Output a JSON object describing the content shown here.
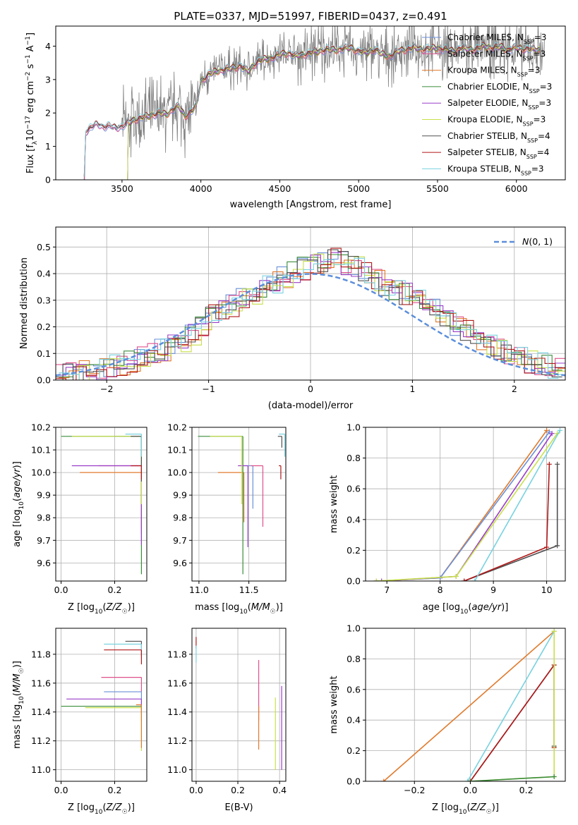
{
  "title": "PLATE=0337, MJD=51997, FIBERID=0437, z=0.491",
  "colors": {
    "Chabrier MILES": "#6a8fd8",
    "Salpeter MILES": "#e0508c",
    "Kroupa MILES": "#e07a2c",
    "Chabrier ELODIE": "#3a8c3a",
    "Salpeter ELODIE": "#9a3ec8",
    "Kroupa ELODIE": "#c8e04a",
    "Chabrier STELIB": "#505050",
    "Salpeter STELIB": "#b01818",
    "Kroupa STELIB": "#78d2e0",
    "data": "#808080",
    "normal": "#5b8edb"
  },
  "legend_entries": [
    {
      "name": "Chabrier MILES",
      "label": "Chabrier MILES, N",
      "sub": "SSP",
      "n": "=3"
    },
    {
      "name": "Salpeter MILES",
      "label": "Salpeter MILES, N",
      "sub": "SSP",
      "n": "=3"
    },
    {
      "name": "Kroupa MILES",
      "label": "Kroupa MILES, N",
      "sub": "SSP",
      "n": "=3"
    },
    {
      "name": "Chabrier ELODIE",
      "label": "Chabrier ELODIE, N",
      "sub": "SSP",
      "n": "=3"
    },
    {
      "name": "Salpeter ELODIE",
      "label": "Salpeter ELODIE, N",
      "sub": "SSP",
      "n": "=3"
    },
    {
      "name": "Kroupa ELODIE",
      "label": "Kroupa ELODIE, N",
      "sub": "SSP",
      "n": "=3"
    },
    {
      "name": "Chabrier STELIB",
      "label": "Chabrier STELIB, N",
      "sub": "SSP",
      "n": "=4"
    },
    {
      "name": "Salpeter STELIB",
      "label": "Salpeter STELIB, N",
      "sub": "SSP",
      "n": "=4"
    },
    {
      "name": "Kroupa STELIB",
      "label": "Kroupa STELIB, N",
      "sub": "SSP",
      "n": "=3"
    }
  ],
  "chart_data": [
    {
      "id": "spectrum",
      "type": "line",
      "xlabel": "wavelength [Angstrom, rest frame]",
      "ylabel": "Flux [f_λ 10^-17 erg cm^-2 s^-1 A^-1]",
      "xlim": [
        3080,
        6310
      ],
      "ylim": [
        0,
        4.6
      ],
      "xticks": [
        3500,
        4000,
        4500,
        5000,
        5500,
        6000
      ],
      "yticks": [
        0,
        1,
        2,
        3,
        4
      ],
      "legend": "top-right",
      "grid": false,
      "model_x": [
        3260,
        3270,
        3300,
        3340,
        3380,
        3420,
        3460,
        3500,
        3540,
        3580,
        3620,
        3660,
        3700,
        3740,
        3780,
        3820,
        3860,
        3900,
        3940,
        3970,
        4000,
        4050,
        4100,
        4150,
        4200,
        4250,
        4300,
        4350,
        4400,
        4450,
        4500,
        4550,
        4600,
        4650,
        4700,
        4750,
        4800,
        4850,
        4900,
        4950,
        5000,
        5050,
        5100,
        5150,
        5200,
        5250,
        5300,
        5350,
        5400,
        5450,
        5500,
        5550,
        5600,
        5650,
        5700,
        5750,
        5800,
        5850,
        5900,
        5950,
        6000,
        6050,
        6100,
        6150
      ],
      "model_y": [
        0.05,
        1.45,
        1.55,
        1.65,
        1.6,
        1.6,
        1.55,
        1.6,
        1.7,
        1.8,
        1.85,
        1.9,
        1.95,
        2.0,
        1.95,
        2.1,
        2.2,
        1.9,
        2.05,
        2.2,
        2.95,
        3.15,
        3.25,
        3.3,
        3.35,
        3.4,
        3.25,
        3.5,
        3.6,
        3.65,
        3.75,
        3.8,
        3.7,
        3.75,
        3.8,
        3.85,
        3.9,
        3.88,
        3.92,
        3.95,
        3.85,
        3.8,
        3.9,
        3.75,
        3.7,
        3.85,
        3.9,
        3.95,
        3.9,
        3.92,
        3.95,
        3.9,
        3.85,
        3.95,
        3.9,
        3.92,
        4.0,
        3.95,
        3.98,
        3.9,
        3.95,
        3.92,
        3.9,
        3.88
      ],
      "data_range": [
        3260,
        6180
      ],
      "data_noise_amp": 0.9
    },
    {
      "id": "residuals",
      "type": "bar",
      "xlabel": "(data-model)/error",
      "ylabel": "Normed distribution",
      "xlim": [
        -2.5,
        2.5
      ],
      "ylim": [
        0,
        0.575
      ],
      "xticks": [
        -2,
        -1,
        0,
        1,
        2
      ],
      "yticks": [
        0,
        0.1,
        0.2,
        0.3,
        0.4,
        0.5
      ],
      "grid": true,
      "legend": "top-right",
      "legend_label": "N(0,1)",
      "bin_edges_start": -2.5,
      "bin_width": 0.1,
      "base_hist": [
        0.02,
        0.02,
        0.03,
        0.03,
        0.04,
        0.05,
        0.06,
        0.07,
        0.08,
        0.1,
        0.11,
        0.13,
        0.15,
        0.17,
        0.21,
        0.24,
        0.26,
        0.28,
        0.3,
        0.33,
        0.35,
        0.37,
        0.39,
        0.41,
        0.42,
        0.44,
        0.45,
        0.46,
        0.44,
        0.42,
        0.4,
        0.38,
        0.36,
        0.34,
        0.32,
        0.3,
        0.28,
        0.26,
        0.24,
        0.21,
        0.18,
        0.15,
        0.13,
        0.11,
        0.09,
        0.08,
        0.07,
        0.06,
        0.05,
        0.04
      ]
    },
    {
      "id": "age_vs_Z",
      "type": "scatter",
      "xlabel": "Z [log10(Z/Z☉)]",
      "ylabel": "age [log10(age/yr)]",
      "xlim": [
        -0.02,
        0.32
      ],
      "ylim": [
        9.52,
        10.2
      ],
      "xticks": [
        0.0,
        0.2
      ],
      "yticks": [
        9.6,
        9.7,
        9.8,
        9.9,
        10.0,
        10.1,
        10.2
      ],
      "grid": true,
      "points": [
        {
          "series": "Chabrier MILES",
          "x": 0.3,
          "y": 10.16,
          "xerr_lo": 0.1,
          "yerr_lo": 0.05
        },
        {
          "series": "Salpeter MILES",
          "x": 0.3,
          "y": 10.03,
          "xerr_lo": 0.16,
          "yerr_lo": 0.3
        },
        {
          "series": "Kroupa MILES",
          "x": 0.3,
          "y": 10.0,
          "xerr_lo": 0.23,
          "yerr_lo": 0.25
        },
        {
          "series": "Chabrier ELODIE",
          "x": 0.3,
          "y": 10.16,
          "xerr_lo": 0.3,
          "yerr_lo": 0.61
        },
        {
          "series": "Salpeter ELODIE",
          "x": 0.3,
          "y": 10.03,
          "xerr_lo": 0.26,
          "yerr_lo": 0.35
        },
        {
          "series": "Kroupa ELODIE",
          "x": 0.3,
          "y": 10.16,
          "xerr_lo": 0.26,
          "yerr_lo": 0.3
        },
        {
          "series": "Chabrier STELIB",
          "x": 0.3,
          "y": 10.16,
          "xerr_lo": 0.04,
          "yerr_lo": 0.2
        },
        {
          "series": "Salpeter STELIB",
          "x": 0.3,
          "y": 10.03,
          "xerr_lo": 0.04,
          "yerr_lo": 0.06
        },
        {
          "series": "Kroupa STELIB",
          "x": 0.3,
          "y": 10.17,
          "xerr_lo": 0.06,
          "yerr_lo": 0.1
        }
      ]
    },
    {
      "id": "age_vs_mass",
      "type": "scatter",
      "xlabel": "mass [log10(M/M☉)]",
      "ylabel": "",
      "xlim": [
        10.93,
        11.87
      ],
      "ylim": [
        9.52,
        10.2
      ],
      "xticks": [
        11.0,
        11.5
      ],
      "yticks": [
        9.6,
        9.7,
        9.8,
        9.9,
        10.0,
        10.1,
        10.2
      ],
      "grid": true,
      "points": [
        {
          "series": "Chabrier MILES",
          "x": 11.54,
          "y": 10.03,
          "xerr_lo": 0.1,
          "yerr_lo": 0.19
        },
        {
          "series": "Salpeter MILES",
          "x": 11.64,
          "y": 10.03,
          "xerr_lo": 0.12,
          "yerr_lo": 0.27
        },
        {
          "series": "Kroupa MILES",
          "x": 11.45,
          "y": 10.0,
          "xerr_lo": 0.26,
          "yerr_lo": 0.22
        },
        {
          "series": "Chabrier ELODIE",
          "x": 11.44,
          "y": 10.16,
          "xerr_lo": 0.45,
          "yerr_lo": 0.61
        },
        {
          "series": "Salpeter ELODIE",
          "x": 11.49,
          "y": 10.03,
          "xerr_lo": 0.1,
          "yerr_lo": 0.36
        },
        {
          "series": "Kroupa ELODIE",
          "x": 11.43,
          "y": 10.16,
          "xerr_lo": 0.32,
          "yerr_lo": 0.3
        },
        {
          "series": "Chabrier STELIB",
          "x": 11.83,
          "y": 10.16,
          "xerr_lo": 0.04,
          "yerr_lo": 0.05
        },
        {
          "series": "Salpeter STELIB",
          "x": 11.82,
          "y": 10.03,
          "xerr_lo": 0.02,
          "yerr_lo": 0.06
        },
        {
          "series": "Kroupa STELIB",
          "x": 11.86,
          "y": 10.17,
          "xerr_lo": 0.06,
          "yerr_lo": 0.1
        }
      ]
    },
    {
      "id": "weight_vs_age",
      "type": "line",
      "xlabel": "age [log10(age/yr)]",
      "ylabel": "mass weight",
      "xlim": [
        6.6,
        10.35
      ],
      "ylim": [
        0,
        1.0
      ],
      "xticks": [
        7,
        8,
        9,
        10
      ],
      "yticks": [
        0.0,
        0.2,
        0.4,
        0.6,
        0.8,
        1.0
      ],
      "grid": true,
      "series": [
        {
          "name": "Kroupa MILES",
          "x": [
            6.8,
            8.0,
            10.0
          ],
          "y": [
            0.0,
            0.02,
            0.98
          ]
        },
        {
          "name": "Chabrier MILES",
          "x": [
            6.8,
            8.0,
            10.05
          ],
          "y": [
            0.0,
            0.02,
            0.97
          ]
        },
        {
          "name": "Salpeter ELODIE",
          "x": [
            6.9,
            8.3,
            10.1
          ],
          "y": [
            0.0,
            0.03,
            0.96
          ]
        },
        {
          "name": "Kroupa ELODIE",
          "x": [
            6.8,
            8.3,
            10.2
          ],
          "y": [
            0.0,
            0.03,
            0.96
          ]
        },
        {
          "name": "Chabrier STELIB",
          "x": [
            8.45,
            10.2,
            10.2
          ],
          "y": [
            0.0,
            0.23,
            0.76
          ]
        },
        {
          "name": "Salpeter STELIB",
          "x": [
            8.45,
            10.0,
            10.05
          ],
          "y": [
            0.0,
            0.22,
            0.76
          ]
        },
        {
          "name": "Kroupa STELIB",
          "x": [
            8.65,
            10.25
          ],
          "y": [
            0.0,
            0.98
          ]
        }
      ]
    },
    {
      "id": "mass_vs_Z",
      "type": "scatter",
      "xlabel": "Z [log10(Z/Z☉)]",
      "ylabel": "mass [log10(M/M☉)]",
      "xlim": [
        -0.02,
        0.32
      ],
      "ylim": [
        10.92,
        11.98
      ],
      "xticks": [
        0.0,
        0.2
      ],
      "yticks": [
        11.0,
        11.2,
        11.4,
        11.6,
        11.8
      ],
      "grid": true,
      "points": [
        {
          "series": "Chabrier STELIB",
          "x": 0.3,
          "y": 11.89,
          "xerr_lo": 0.06,
          "yerr_lo": 0.1
        },
        {
          "series": "Kroupa STELIB",
          "x": 0.3,
          "y": 11.87,
          "xerr_lo": 0.14,
          "yerr_lo": 0.1
        },
        {
          "series": "Salpeter STELIB",
          "x": 0.3,
          "y": 11.83,
          "xerr_lo": 0.14,
          "yerr_lo": 0.1
        },
        {
          "series": "Salpeter MILES",
          "x": 0.3,
          "y": 11.64,
          "xerr_lo": 0.15,
          "yerr_lo": 0.1
        },
        {
          "series": "Chabrier MILES",
          "x": 0.3,
          "y": 11.54,
          "xerr_lo": 0.14,
          "yerr_lo": 0.1
        },
        {
          "series": "Salpeter ELODIE",
          "x": 0.3,
          "y": 11.49,
          "xerr_lo": 0.28,
          "yerr_lo": 0.1
        },
        {
          "series": "Chabrier ELODIE",
          "x": 0.3,
          "y": 11.44,
          "xerr_lo": 0.3,
          "yerr_lo": 0.1
        },
        {
          "series": "Kroupa ELODIE",
          "x": 0.3,
          "y": 11.43,
          "xerr_lo": 0.21,
          "yerr_lo": 0.3
        },
        {
          "series": "Kroupa MILES",
          "x": 0.3,
          "y": 11.45,
          "xerr_lo": 0.02,
          "yerr_lo": 0.3
        }
      ]
    },
    {
      "id": "mass_vs_ebv",
      "type": "scatter",
      "xlabel": "E(B-V)",
      "ylabel": "",
      "xlim": [
        -0.02,
        0.43
      ],
      "ylim": [
        10.92,
        11.98
      ],
      "xticks": [
        0.0,
        0.2,
        0.4
      ],
      "yticks": [
        11.0,
        11.2,
        11.4,
        11.6,
        11.8
      ],
      "grid": true,
      "points": [
        {
          "series": "Salpeter STELIB",
          "x": 0.0,
          "y": 11.89,
          "yerr_lo": 0.05,
          "yerr_hi": 0.03
        },
        {
          "series": "Kroupa STELIB",
          "x": 0.0,
          "y": 11.82,
          "yerr_lo": 0.08,
          "yerr_hi": 0.04
        },
        {
          "series": "Salpeter MILES",
          "x": 0.3,
          "y": 11.64,
          "yerr_lo": 0.3,
          "yerr_hi": 0.12
        },
        {
          "series": "Kroupa MILES",
          "x": 0.3,
          "y": 11.34,
          "yerr_lo": 0.2,
          "yerr_hi": 0.1
        },
        {
          "series": "Kroupa ELODIE",
          "x": 0.38,
          "y": 11.3,
          "yerr_lo": 0.3,
          "yerr_hi": 0.2
        },
        {
          "series": "Salpeter ELODIE",
          "x": 0.41,
          "y": 11.3,
          "yerr_lo": 0.3,
          "yerr_hi": 0.28
        }
      ]
    },
    {
      "id": "weight_vs_Z",
      "type": "line",
      "xlabel": "Z [log10(Z/Z☉)]",
      "ylabel": "mass weight",
      "xlim": [
        -0.375,
        0.34
      ],
      "ylim": [
        0,
        1.0
      ],
      "xticks": [
        -0.2,
        0.0,
        0.2
      ],
      "yticks": [
        0.0,
        0.2,
        0.4,
        0.6,
        0.8,
        1.0
      ],
      "grid": true,
      "series": [
        {
          "name": "Kroupa MILES",
          "x": [
            -0.31,
            0.3
          ],
          "y": [
            0.0,
            0.98
          ]
        },
        {
          "name": "Kroupa STELIB",
          "x": [
            -0.01,
            0.3
          ],
          "y": [
            0.0,
            0.98
          ]
        },
        {
          "name": "Chabrier STELIB",
          "x": [
            0.0,
            0.3,
            0.3
          ],
          "y": [
            0.0,
            0.76,
            0.23
          ]
        },
        {
          "name": "Salpeter STELIB",
          "x": [
            0.0,
            0.3,
            0.3
          ],
          "y": [
            0.0,
            0.76,
            0.22
          ]
        },
        {
          "name": "Kroupa ELODIE",
          "x": [
            0.0,
            0.3,
            0.3
          ],
          "y": [
            0.0,
            0.03,
            0.98
          ]
        },
        {
          "name": "Chabrier ELODIE",
          "x": [
            0.0,
            0.3
          ],
          "y": [
            0.0,
            0.03
          ]
        }
      ]
    }
  ]
}
